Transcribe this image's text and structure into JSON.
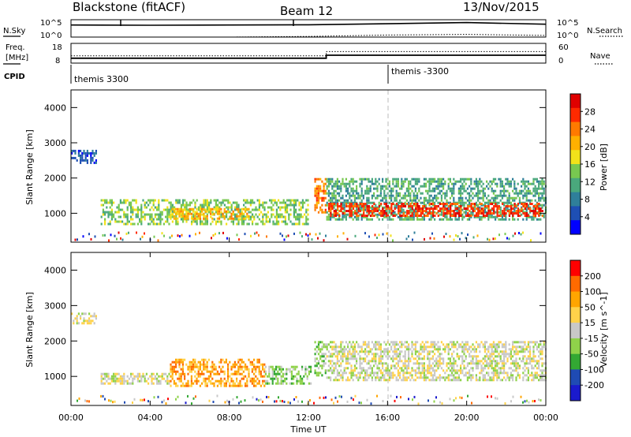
{
  "header": {
    "radar": "Blackstone (fitACF)",
    "beam": "Beam 12",
    "date": "13/Nov/2015"
  },
  "status": {
    "left_top_label": "N.Sky",
    "left_top_tick_hi": "10^5",
    "left_top_tick_lo": "10^0",
    "right_top_label": "N.Search",
    "right_top_tick_hi": "10^5",
    "right_top_tick_lo": "10^0",
    "freq_label_1": "Freq.",
    "freq_label_2": "[MHz]",
    "freq_tick_hi": "18",
    "freq_tick_lo": "8",
    "nave_label": "Nave",
    "nave_tick_hi": "60",
    "nave_tick_lo": "0",
    "cpid_label": "CPID",
    "cpid_1": "themis 3300",
    "cpid_2": "themis -3300"
  },
  "colors": {
    "power": [
      "#0000ff",
      "#1e4fb4",
      "#2f7f9a",
      "#4aa87c",
      "#78c850",
      "#f2e21a",
      "#ffb000",
      "#ff7a00",
      "#ff2a00",
      "#e00000"
    ],
    "velocity": [
      "#ff0000",
      "#ff6a00",
      "#ffa500",
      "#ffd24a",
      "#c8c8c8",
      "#8fd24a",
      "#33a833",
      "#1f4bb4",
      "#1a1acd"
    ]
  },
  "chart_data": [
    {
      "type": "line",
      "panel": "Sky / Search noise",
      "y_scale": "log",
      "ylim": [
        1,
        100000
      ],
      "x": [
        "00:00",
        "04:00",
        "08:00",
        "12:00",
        "16:00",
        "20:00",
        "00:00"
      ],
      "series": [
        {
          "name": "N.Sky",
          "values": [
            3000,
            2500,
            3000,
            3500,
            7000,
            15000,
            5000
          ]
        },
        {
          "name": "N.Search",
          "values": [
            1,
            1,
            1,
            1.5,
            4,
            6,
            3
          ]
        }
      ]
    },
    {
      "type": "line",
      "panel": "Frequency / Nave",
      "x_hours": [
        0,
        12.9,
        12.9,
        24
      ],
      "series": [
        {
          "name": "Freq.",
          "unit": "MHz",
          "values": [
            10.5,
            10.5,
            12.0,
            12.0
          ]
        },
        {
          "name": "Nave",
          "values": [
            22,
            22,
            35,
            35
          ]
        }
      ]
    },
    {
      "type": "heatmap",
      "panel": "Power",
      "ylabel": "Slant Range [km]",
      "colorbar_label": "Power [dB]",
      "colorbar_ticks": [
        "4",
        "8",
        "12",
        "16",
        "20",
        "24",
        "28"
      ],
      "ylim": [
        180,
        4500
      ],
      "y_ticks": [
        "1000",
        "2000",
        "3000",
        "4000"
      ],
      "regions": [
        {
          "t0": 0.0,
          "t1": 1.3,
          "r_lo": 2400,
          "r_hi": 2800,
          "level": 1
        },
        {
          "t0": 1.5,
          "t1": 12.0,
          "r_lo": 700,
          "r_hi": 1400,
          "level": 4
        },
        {
          "t0": 5.0,
          "t1": 9.0,
          "r_lo": 850,
          "r_hi": 1150,
          "level": 6
        },
        {
          "t0": 12.3,
          "t1": 12.9,
          "r_lo": 1000,
          "r_hi": 2000,
          "level": 7
        },
        {
          "t0": 12.9,
          "t1": 24.0,
          "r_lo": 800,
          "r_hi": 2000,
          "level": 3
        },
        {
          "t0": 13.0,
          "t1": 23.8,
          "r_lo": 950,
          "r_hi": 1300,
          "level": 8
        }
      ]
    },
    {
      "type": "heatmap",
      "panel": "Velocity",
      "ylabel": "Slant Range [km]",
      "colorbar_label": "Velocity [m s^-1]",
      "colorbar_ticks": [
        "200",
        "100",
        "50",
        "15",
        "-15",
        "-50",
        "-100",
        "-200"
      ],
      "ylim": [
        180,
        4500
      ],
      "y_ticks": [
        "1000",
        "2000",
        "3000",
        "4000"
      ],
      "xlabel": "Time UT",
      "x_ticks": [
        "00:00",
        "04:00",
        "08:00",
        "12:00",
        "16:00",
        "20:00",
        "00:00"
      ],
      "regions": [
        {
          "t0": 0.0,
          "t1": 1.3,
          "r_lo": 2500,
          "r_hi": 2800,
          "level": 4
        },
        {
          "t0": 1.5,
          "t1": 5.0,
          "r_lo": 800,
          "r_hi": 1100,
          "level": 4
        },
        {
          "t0": 5.0,
          "t1": 9.8,
          "r_lo": 700,
          "r_hi": 1500,
          "level": 2
        },
        {
          "t0": 9.8,
          "t1": 12.1,
          "r_lo": 800,
          "r_hi": 1300,
          "level": 5
        },
        {
          "t0": 12.3,
          "t1": 12.9,
          "r_lo": 1000,
          "r_hi": 2000,
          "level": 5
        },
        {
          "t0": 12.9,
          "t1": 24.0,
          "r_lo": 900,
          "r_hi": 2000,
          "level": 4
        }
      ]
    }
  ]
}
